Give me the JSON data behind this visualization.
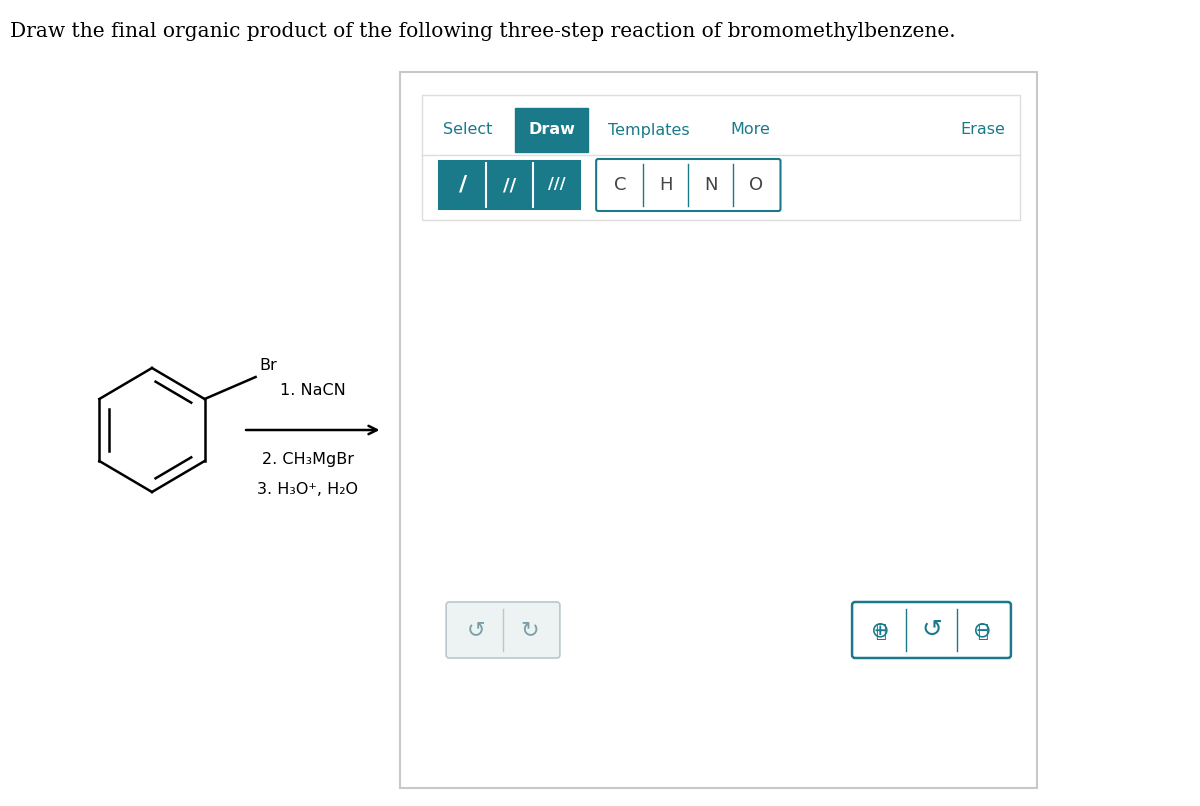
{
  "title_text": "Draw the final organic product of the following three-step reaction of bromomethylbenzene.",
  "bg_color": "#ffffff",
  "teal_color": "#1a7a8a",
  "teal_light": "#c8dfe3",
  "panel_border_color": "#c8c8c8",
  "toolbar_inner_border": "#dddddd",
  "step_labels": [
    "1. NaCN",
    "2. CH₃MgBr",
    "3. H₃O⁺, H₂O"
  ],
  "elements": [
    "C",
    "H",
    "N",
    "O"
  ],
  "bond_symbols": [
    "/",
    "//",
    "///"
  ]
}
